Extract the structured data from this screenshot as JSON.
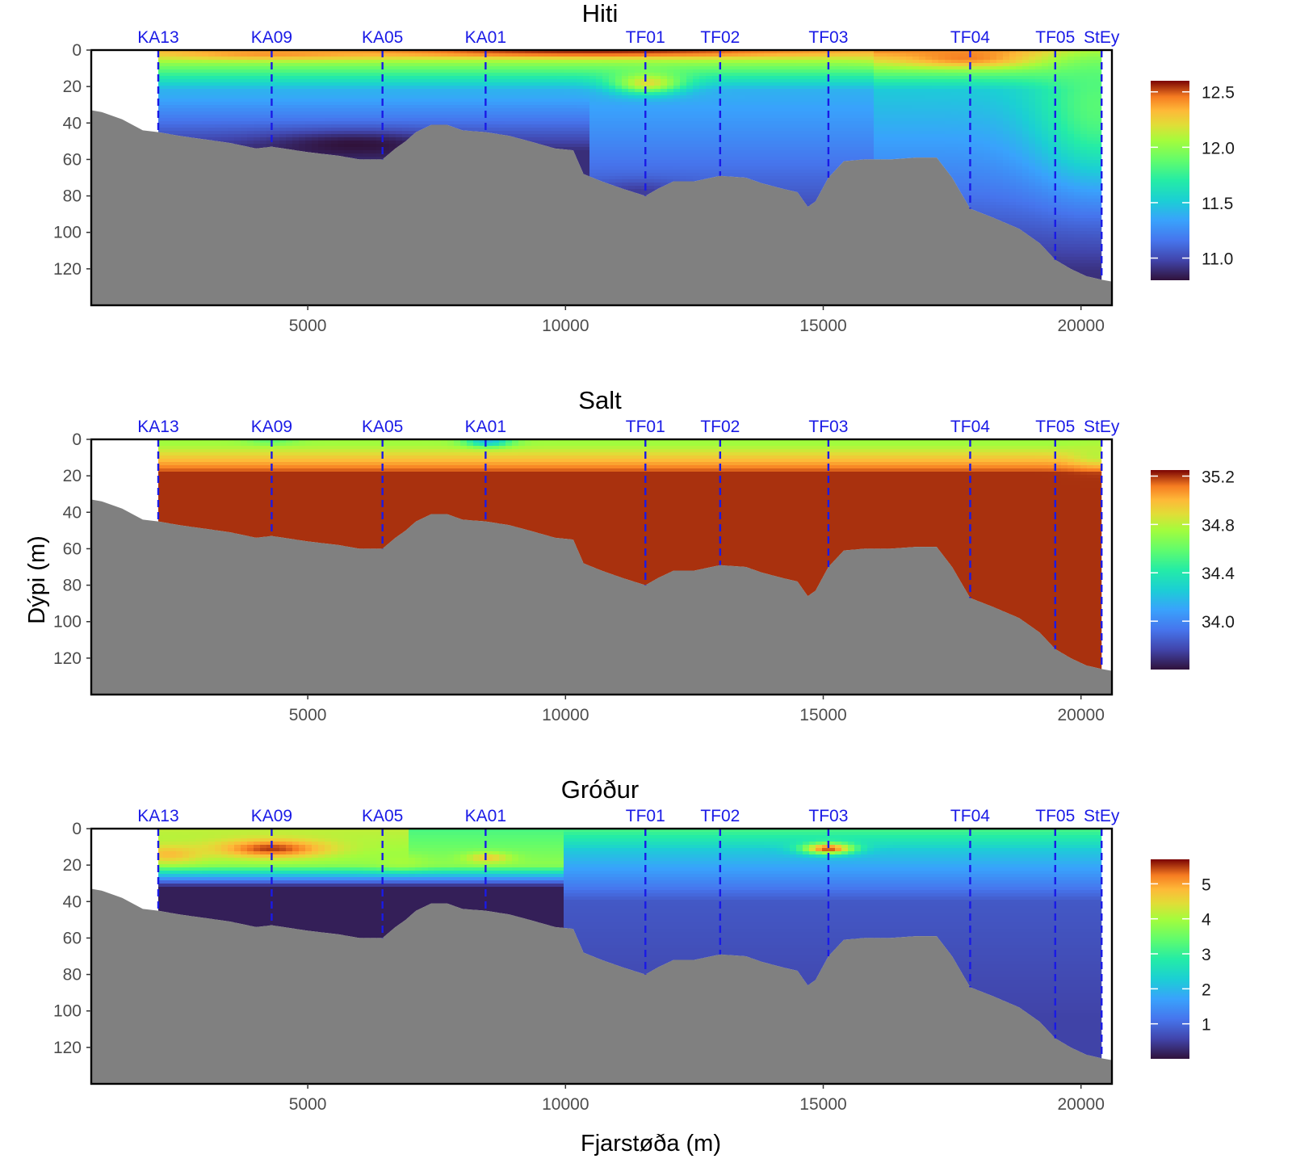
{
  "chart_data": [
    {
      "type": "heatmap",
      "title": "Hiti",
      "variable": "temperature",
      "xlabel": "Fjarstøða (m)",
      "ylabel": "Dýpi (m)",
      "xlim": [
        800,
        20600
      ],
      "ylim": [
        140,
        0
      ],
      "x_ticks": [
        5000,
        10000,
        15000,
        20000
      ],
      "x_tick_labels": [
        "5000",
        "10000",
        "15000",
        "20000"
      ],
      "y_ticks": [
        0,
        20,
        40,
        60,
        80,
        100,
        120
      ],
      "y_tick_labels": [
        "0",
        "20",
        "40",
        "60",
        "80",
        "100",
        "120"
      ],
      "colorbar": {
        "min": 10.8,
        "max": 12.6,
        "ticks": [
          11.0,
          11.5,
          12.0,
          12.5
        ],
        "tick_labels": [
          "11.0",
          "11.5",
          "12.0",
          "12.5"
        ]
      },
      "features": [
        {
          "x": 10500,
          "depth": 1,
          "value": 12.55,
          "sx": 4500,
          "sz": 3
        },
        {
          "x": 17800,
          "depth": 4,
          "value": 12.45,
          "sx": 1300,
          "sz": 5
        },
        {
          "x": 4300,
          "depth": 2,
          "value": 12.4,
          "sx": 2000,
          "sz": 3
        },
        {
          "x": 11600,
          "depth": 18,
          "value": 12.2,
          "sx": 700,
          "sz": 6
        },
        {
          "x": 5900,
          "depth": 52,
          "value": 10.8,
          "sx": 1700,
          "sz": 7
        },
        {
          "x": 11400,
          "depth": 78,
          "value": 10.95,
          "sx": 900,
          "sz": 6
        },
        {
          "x": 20300,
          "depth": 30,
          "value": 11.85,
          "sx": 1200,
          "sz": 40
        }
      ]
    },
    {
      "type": "heatmap",
      "title": "Salt",
      "variable": "salinity",
      "xlabel": "Fjarstøða (m)",
      "ylabel": "Dýpi (m)",
      "xlim": [
        800,
        20600
      ],
      "ylim": [
        140,
        0
      ],
      "x_ticks": [
        5000,
        10000,
        15000,
        20000
      ],
      "x_tick_labels": [
        "5000",
        "10000",
        "15000",
        "20000"
      ],
      "y_ticks": [
        0,
        20,
        40,
        60,
        80,
        100,
        120
      ],
      "y_tick_labels": [
        "0",
        "20",
        "40",
        "60",
        "80",
        "100",
        "120"
      ],
      "colorbar": {
        "min": 33.6,
        "max": 35.25,
        "ticks": [
          34.0,
          34.4,
          34.8,
          35.2
        ],
        "tick_labels": [
          "34.0",
          "34.4",
          "34.8",
          "35.2"
        ]
      },
      "features": [
        {
          "x": 8500,
          "depth": 1,
          "value": 34.2,
          "sx": 450,
          "sz": 3
        },
        {
          "x": 4300,
          "depth": 1,
          "value": 34.6,
          "sx": 500,
          "sz": 2
        },
        {
          "x": 20300,
          "depth": 8,
          "value": 34.8,
          "sx": 500,
          "sz": 6
        }
      ]
    },
    {
      "type": "heatmap",
      "title": "Gróður",
      "variable": "chlorophyll",
      "xlabel": "Fjarstøða (m)",
      "ylabel": "Dýpi (m)",
      "xlim": [
        800,
        20600
      ],
      "ylim": [
        140,
        0
      ],
      "x_ticks": [
        5000,
        10000,
        15000,
        20000
      ],
      "x_tick_labels": [
        "5000",
        "10000",
        "15000",
        "20000"
      ],
      "y_ticks": [
        0,
        20,
        40,
        60,
        80,
        100,
        120
      ],
      "y_tick_labels": [
        "0",
        "20",
        "40",
        "60",
        "80",
        "100",
        "120"
      ],
      "colorbar": {
        "min": 0.0,
        "max": 5.7,
        "ticks": [
          1,
          2,
          3,
          4,
          5
        ],
        "tick_labels": [
          "1",
          "2",
          "3",
          "4",
          "5"
        ]
      },
      "features": [
        {
          "x": 4300,
          "depth": 11,
          "value": 5.5,
          "sx": 1100,
          "sz": 5
        },
        {
          "x": 15100,
          "depth": 11,
          "value": 5.5,
          "sx": 500,
          "sz": 3
        },
        {
          "x": 8500,
          "depth": 16,
          "value": 4.6,
          "sx": 450,
          "sz": 3
        },
        {
          "x": 2300,
          "depth": 14,
          "value": 4.8,
          "sx": 700,
          "sz": 5
        },
        {
          "x": 6800,
          "depth": 18,
          "value": 4.0,
          "sx": 500,
          "sz": 4
        }
      ]
    }
  ],
  "stations": [
    {
      "name": "KA13",
      "x": 2100,
      "bottom_depth": 45
    },
    {
      "name": "KA09",
      "x": 4300,
      "bottom_depth": 53
    },
    {
      "name": "KA05",
      "x": 6450,
      "bottom_depth": 60
    },
    {
      "name": "KA01",
      "x": 8450,
      "bottom_depth": 45
    },
    {
      "name": "TF01",
      "x": 11550,
      "bottom_depth": 80
    },
    {
      "name": "TF02",
      "x": 13000,
      "bottom_depth": 69
    },
    {
      "name": "TF03",
      "x": 15100,
      "bottom_depth": 70
    },
    {
      "name": "TF04",
      "x": 17850,
      "bottom_depth": 87
    },
    {
      "name": "TF05",
      "x": 19500,
      "bottom_depth": 115
    },
    {
      "name": "StEy",
      "x": 20400,
      "bottom_depth": 126
    }
  ],
  "bathymetry": {
    "x": [
      800,
      1000,
      1400,
      1800,
      2100,
      2500,
      3000,
      3500,
      4000,
      4300,
      5000,
      5600,
      6000,
      6450,
      6700,
      6900,
      7100,
      7400,
      7700,
      8000,
      8450,
      8900,
      9300,
      9800,
      10150,
      10350,
      10700,
      11100,
      11550,
      11800,
      12100,
      12500,
      13000,
      13500,
      13800,
      14200,
      14500,
      14700,
      14850,
      15100,
      15400,
      15800,
      16300,
      16800,
      17200,
      17500,
      17850,
      18300,
      18800,
      19200,
      19500,
      19800,
      20100,
      20400,
      20600
    ],
    "depth": [
      33,
      34,
      38,
      44,
      45,
      47,
      49,
      51,
      54,
      53,
      56,
      58,
      60,
      60,
      54,
      50,
      45,
      41,
      41,
      44,
      45,
      47,
      50,
      54,
      55,
      68,
      72,
      76,
      80,
      76,
      72,
      72,
      69,
      70,
      73,
      76,
      78,
      86,
      83,
      70,
      61,
      60,
      60,
      59,
      59,
      70,
      87,
      92,
      98,
      106,
      115,
      120,
      124,
      126,
      127
    ]
  }
}
